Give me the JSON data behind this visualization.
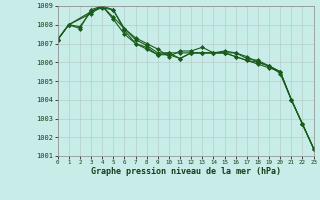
{
  "xlabel": "Graphe pression niveau de la mer (hPa)",
  "ylim": [
    1001,
    1009
  ],
  "xlim": [
    0,
    23
  ],
  "yticks": [
    1001,
    1002,
    1003,
    1004,
    1005,
    1006,
    1007,
    1008,
    1009
  ],
  "xticks": [
    0,
    1,
    2,
    3,
    4,
    5,
    6,
    7,
    8,
    9,
    10,
    11,
    12,
    13,
    14,
    15,
    16,
    17,
    18,
    19,
    20,
    21,
    22,
    23
  ],
  "xtick_labels": [
    "0",
    "1",
    "2",
    "3",
    "4",
    "5",
    "6",
    "7",
    "8",
    "9",
    "10",
    "11",
    "12",
    "13",
    "14",
    "15",
    "16",
    "17",
    "18",
    "19",
    "20",
    "21",
    "22",
    "23"
  ],
  "background_color": "#c8ece8",
  "grid_color": "#b0c8c4",
  "line_color": "#1a5c1a",
  "series": [
    {
      "x": [
        0,
        1,
        2,
        3,
        4,
        5,
        6,
        7,
        8,
        9,
        10,
        11,
        12,
        13,
        14,
        15,
        16,
        17,
        18,
        19,
        20,
        21,
        22,
        23
      ],
      "y": [
        1007.2,
        1008.0,
        1007.9,
        1008.7,
        1008.9,
        1008.8,
        1007.7,
        1007.0,
        1006.8,
        1006.4,
        1006.5,
        1006.2,
        1006.5,
        1006.5,
        1006.5,
        1006.5,
        1006.3,
        1006.1,
        1006.0,
        1005.8,
        1005.4,
        1004.0,
        1002.7,
        1001.4
      ]
    },
    {
      "x": [
        0,
        1,
        2,
        3,
        4,
        5,
        6,
        7,
        8,
        9,
        10,
        11,
        12,
        13,
        14,
        15,
        16,
        17,
        18,
        19,
        20,
        21,
        22,
        23
      ],
      "y": [
        1007.2,
        1008.0,
        1007.8,
        1008.8,
        1009.0,
        1008.4,
        1007.8,
        1007.3,
        1007.0,
        1006.7,
        1006.3,
        1006.6,
        1006.6,
        1006.8,
        1006.5,
        1006.6,
        1006.5,
        1006.3,
        1006.0,
        1005.8,
        1005.5,
        1004.0,
        1002.7,
        1001.4
      ]
    },
    {
      "x": [
        0,
        1,
        3,
        4,
        5,
        6,
        7,
        8,
        9,
        10,
        11,
        12,
        13,
        14,
        15,
        16,
        17,
        18,
        19,
        20,
        21,
        22,
        23
      ],
      "y": [
        1007.2,
        1008.0,
        1008.7,
        1009.0,
        1008.3,
        1007.5,
        1007.0,
        1006.7,
        1006.4,
        1006.4,
        1006.2,
        1006.5,
        1006.5,
        1006.5,
        1006.5,
        1006.3,
        1006.1,
        1005.9,
        1005.7,
        1005.5,
        1004.0,
        1002.7,
        1001.4
      ]
    },
    {
      "x": [
        0,
        1,
        3,
        4,
        5,
        6,
        7,
        8,
        9,
        10,
        11,
        12,
        13,
        14,
        15,
        16,
        17,
        18,
        19,
        20,
        21,
        22,
        23
      ],
      "y": [
        1007.2,
        1008.0,
        1008.6,
        1009.0,
        1008.8,
        1007.8,
        1007.2,
        1006.9,
        1006.5,
        1006.5,
        1006.5,
        1006.5,
        1006.5,
        1006.5,
        1006.5,
        1006.5,
        1006.2,
        1006.1,
        1005.8,
        1005.5,
        1004.0,
        1002.7,
        1001.4
      ]
    }
  ],
  "marker": "D",
  "markersize": 2.0,
  "linewidth": 0.8
}
